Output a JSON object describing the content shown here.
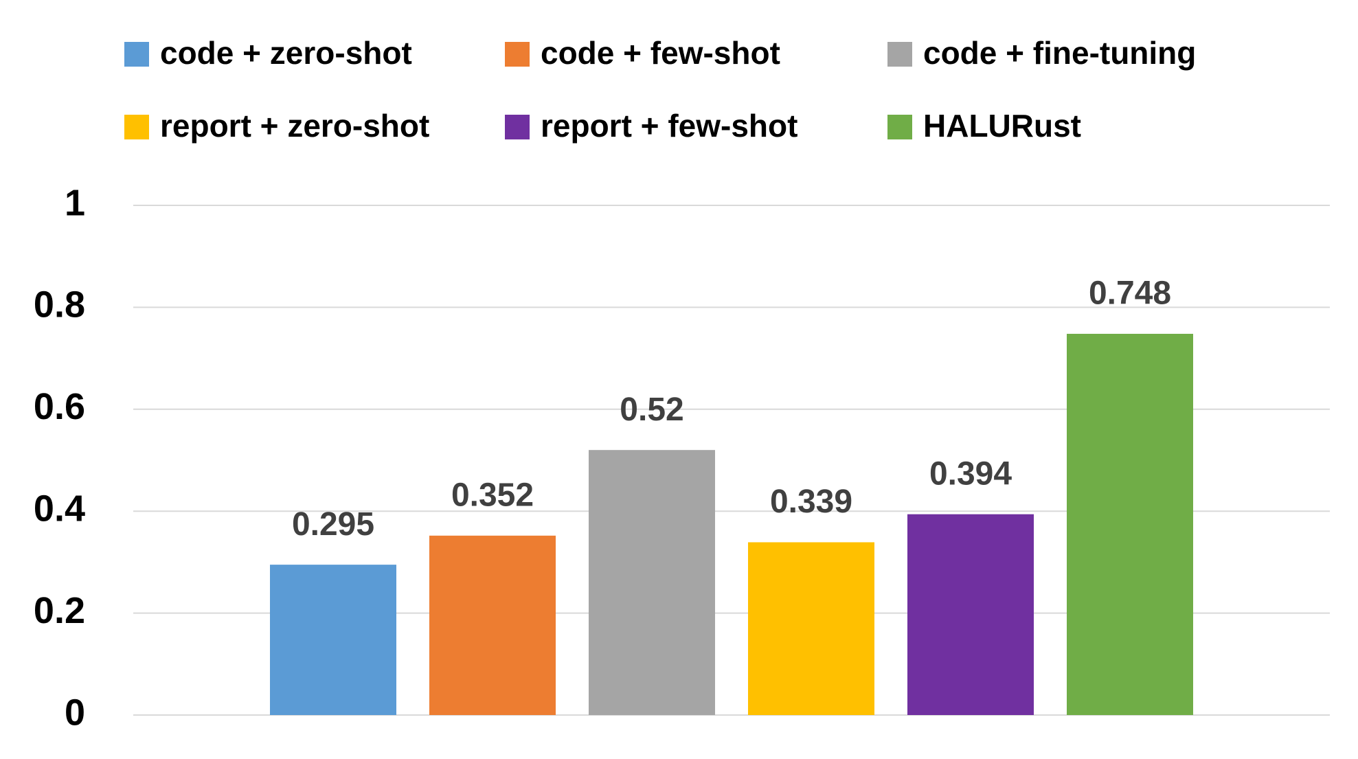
{
  "chart_data": {
    "type": "bar",
    "categories": [
      null
    ],
    "series": [
      {
        "name": "code + zero-shot",
        "color": "#5b9bd5",
        "values": [
          0.295
        ]
      },
      {
        "name": "code + few-shot",
        "color": "#ed7d31",
        "values": [
          0.352
        ]
      },
      {
        "name": "code + fine-tuning",
        "color": "#a5a5a5",
        "values": [
          0.52
        ]
      },
      {
        "name": "report + zero-shot",
        "color": "#ffc000",
        "values": [
          0.339
        ]
      },
      {
        "name": "report + few-shot",
        "color": "#7030a0",
        "values": [
          0.394
        ]
      },
      {
        "name": "HALURust",
        "color": "#70ad47",
        "values": [
          0.748
        ]
      }
    ],
    "ylim": [
      0,
      1
    ],
    "yticks": [
      0,
      0.2,
      0.4,
      0.6,
      0.8,
      1
    ],
    "grid": true,
    "legend": "top"
  }
}
